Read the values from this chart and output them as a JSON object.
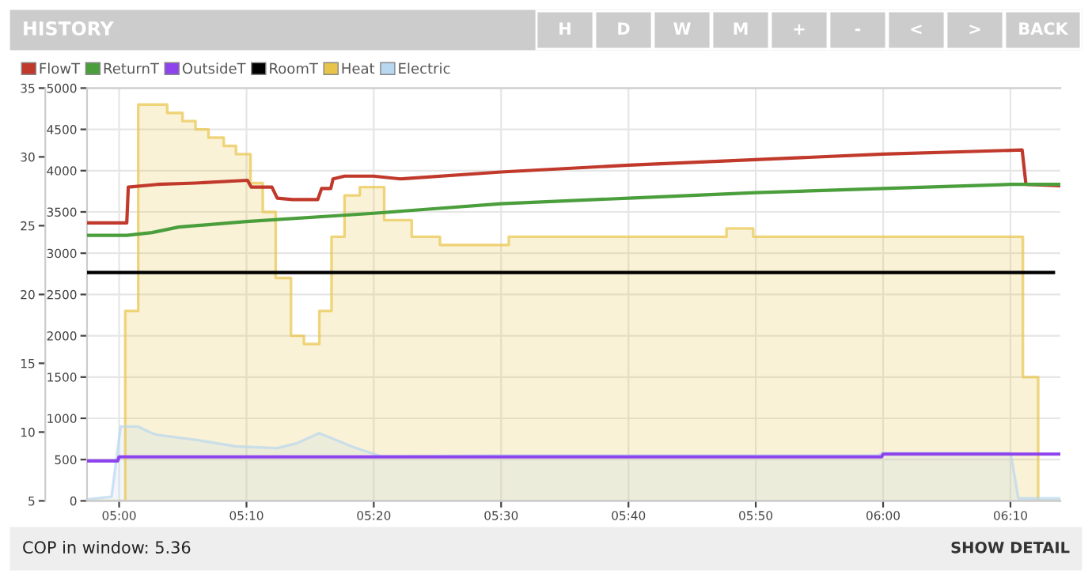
{
  "chart_data": {
    "type": "line",
    "title": "HISTORY",
    "annotations": [
      "H",
      "D",
      "W",
      "M",
      "+",
      "-",
      "<",
      ">",
      "BACK",
      "COP in window: 5.36",
      "SHOW DETAIL"
    ],
    "xlim": [
      4.958,
      6.232
    ],
    "xticks": [
      {
        "value": 5.0,
        "label": "05:00"
      },
      {
        "value": 5.1667,
        "label": "05:10"
      },
      {
        "value": 5.3333,
        "label": "05:20"
      },
      {
        "value": 5.5,
        "label": "05:30"
      },
      {
        "value": 5.6667,
        "label": "05:40"
      },
      {
        "value": 5.8333,
        "label": "05:50"
      },
      {
        "value": 6.0,
        "label": "06:00"
      },
      {
        "value": 6.1667,
        "label": "06:10"
      }
    ],
    "ylim": [
      0,
      5000
    ],
    "yticks": [
      0,
      500,
      1000,
      1500,
      2000,
      2500,
      3000,
      3500,
      4000,
      4500,
      5000
    ],
    "y2lim": [
      5,
      35
    ],
    "y2ticks": [
      5,
      10,
      15,
      20,
      25,
      30,
      35
    ],
    "grid": true,
    "legend": "top left",
    "series": [
      {
        "name": "FlowT",
        "axis": "y2",
        "color": "#c0392b",
        "x": [
          4.958,
          5.01,
          5.012,
          5.05,
          5.1,
          5.168,
          5.173,
          5.2,
          5.207,
          5.227,
          5.26,
          5.265,
          5.277,
          5.28,
          5.295,
          5.333,
          5.368,
          5.5,
          5.667,
          5.833,
          6.0,
          6.182,
          6.187,
          6.232
        ],
        "values": [
          25.2,
          25.2,
          27.8,
          28.0,
          28.1,
          28.3,
          27.8,
          27.8,
          27.0,
          26.9,
          26.9,
          27.7,
          27.7,
          28.4,
          28.6,
          28.6,
          28.4,
          28.9,
          29.4,
          29.8,
          30.2,
          30.5,
          28.0,
          27.9
        ]
      },
      {
        "name": "ReturnT",
        "axis": "y2",
        "color": "#4a9e3c",
        "x": [
          4.958,
          5.01,
          5.043,
          5.078,
          5.167,
          5.333,
          5.5,
          5.667,
          5.833,
          6.0,
          6.167,
          6.232
        ],
        "values": [
          24.3,
          24.3,
          24.5,
          24.9,
          25.3,
          25.9,
          26.6,
          27.0,
          27.4,
          27.7,
          28.0,
          28.0
        ]
      },
      {
        "name": "OutsideT",
        "axis": "y2",
        "color": "#8e44ec",
        "x": [
          4.958,
          4.998,
          5.0,
          5.998,
          6.0,
          6.232
        ],
        "values": [
          7.9,
          7.9,
          8.2,
          8.2,
          8.4,
          8.4
        ]
      },
      {
        "name": "RoomT",
        "axis": "y2",
        "color": "#000000",
        "x": [
          4.958,
          6.223
        ],
        "values": [
          21.6,
          21.6
        ]
      },
      {
        "name": "Heat",
        "type": "area",
        "color": "#e8c44a",
        "x": [
          4.958,
          5.008,
          5.008,
          5.025,
          5.025,
          5.063,
          5.063,
          5.083,
          5.083,
          5.1,
          5.1,
          5.117,
          5.117,
          5.137,
          5.137,
          5.153,
          5.153,
          5.172,
          5.172,
          5.188,
          5.188,
          5.205,
          5.205,
          5.225,
          5.225,
          5.242,
          5.242,
          5.262,
          5.262,
          5.278,
          5.278,
          5.295,
          5.295,
          5.315,
          5.315,
          5.347,
          5.347,
          5.383,
          5.383,
          5.42,
          5.42,
          5.51,
          5.51,
          5.795,
          5.795,
          5.83,
          5.83,
          6.183,
          6.183,
          6.203,
          6.203,
          6.232
        ],
        "values": [
          0,
          0,
          2300,
          2300,
          4800,
          4800,
          4700,
          4700,
          4600,
          4600,
          4500,
          4500,
          4400,
          4400,
          4300,
          4300,
          4200,
          4200,
          3850,
          3850,
          3500,
          3500,
          2700,
          2700,
          2000,
          2000,
          1900,
          1900,
          2300,
          2300,
          3200,
          3200,
          3700,
          3700,
          3800,
          3800,
          3400,
          3400,
          3200,
          3200,
          3100,
          3100,
          3200,
          3200,
          3300,
          3300,
          3200,
          3200,
          1500,
          1500,
          0,
          0
        ]
      },
      {
        "name": "Electric",
        "type": "area",
        "color": "#b9d7ee",
        "x": [
          4.958,
          4.99,
          5.002,
          5.025,
          5.043,
          5.05,
          5.1,
          5.153,
          5.207,
          5.233,
          5.262,
          5.307,
          5.343,
          5.5,
          5.993,
          6.0,
          6.167,
          6.177,
          6.232
        ],
        "values": [
          20,
          50,
          900,
          900,
          820,
          800,
          740,
          660,
          640,
          700,
          820,
          650,
          540,
          550,
          550,
          580,
          580,
          30,
          30
        ]
      }
    ]
  }
}
